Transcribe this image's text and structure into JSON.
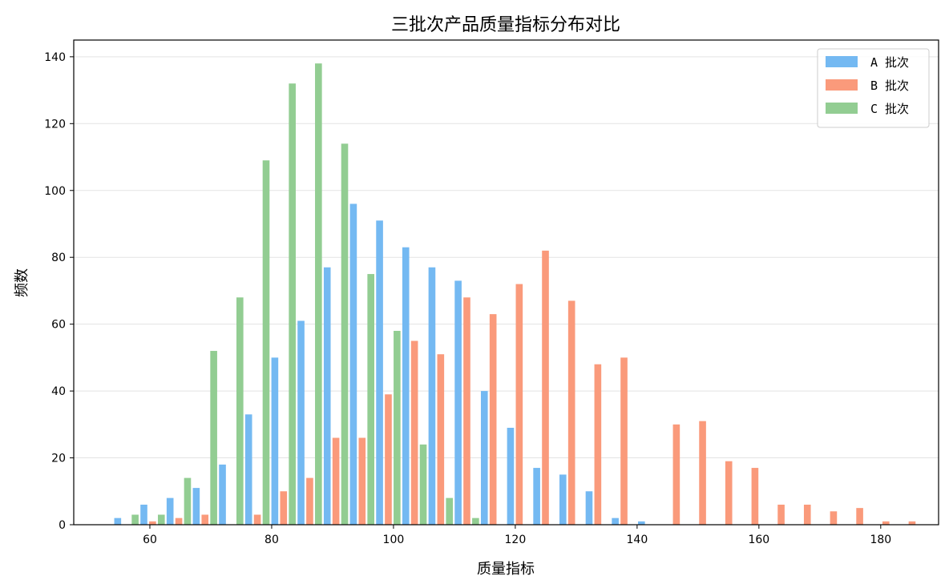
{
  "chart_data": {
    "type": "bar",
    "title": "三批次产品质量指标分布对比",
    "xlabel": "质量指标",
    "ylabel": "频数",
    "xlim": [
      47.5,
      189.5
    ],
    "ylim": [
      0,
      145
    ],
    "xticks": [
      60,
      80,
      100,
      120,
      140,
      160,
      180
    ],
    "yticks": [
      0,
      20,
      40,
      60,
      80,
      100,
      120,
      140
    ],
    "grid": "horizontal",
    "legend_position": "top-right",
    "bin_start": 54,
    "bin_width": 4.3,
    "series": [
      {
        "name": "A 批次",
        "color": "#74b9f2",
        "values": [
          2,
          6,
          8,
          11,
          18,
          33,
          50,
          61,
          77,
          96,
          91,
          83,
          77,
          73,
          40,
          29,
          17,
          15,
          10,
          2,
          1,
          0,
          0,
          0,
          0,
          0,
          0,
          0,
          0,
          0,
          0,
          0
        ]
      },
      {
        "name": "B 批次",
        "color": "#fa9a7b",
        "values": [
          0,
          1,
          2,
          3,
          0,
          3,
          10,
          14,
          26,
          26,
          39,
          55,
          51,
          68,
          63,
          72,
          82,
          67,
          48,
          50,
          0,
          30,
          31,
          19,
          17,
          6,
          6,
          4,
          5,
          1,
          1,
          0
        ]
      },
      {
        "name": "C 批次",
        "color": "#92cd92",
        "values": [
          3,
          3,
          14,
          52,
          68,
          109,
          132,
          138,
          114,
          75,
          58,
          24,
          8,
          2,
          0,
          0,
          0,
          0,
          0,
          0,
          0,
          0,
          0,
          0,
          0,
          0,
          0,
          0,
          0,
          0,
          0,
          0
        ]
      }
    ]
  }
}
